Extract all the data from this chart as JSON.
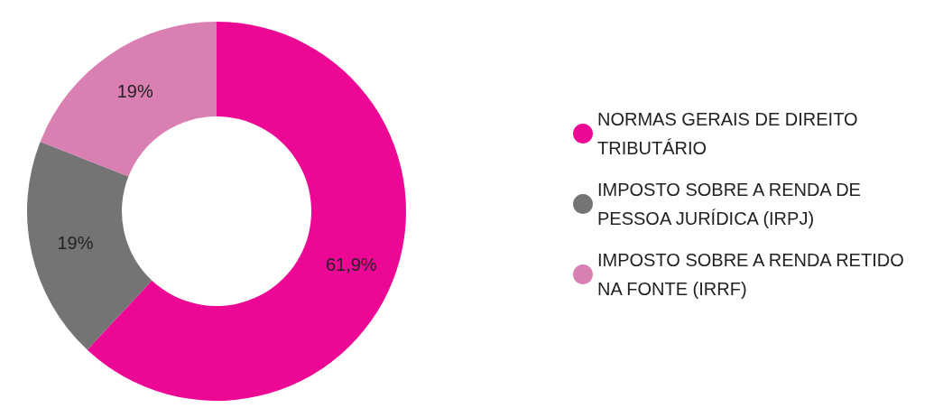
{
  "chart_data": {
    "type": "donut",
    "categories": [
      "NORMAS GERAIS DE DIREITO TRIBUTÁRIO",
      "IMPOSTO SOBRE A RENDA DE PESSOA JURÍDICA (IRPJ)",
      "IMPOSTO SOBRE A RENDA RETIDO NA FONTE (IRRF)"
    ],
    "values": [
      61.9,
      19,
      19
    ],
    "colors": [
      "#ec0894",
      "#747474",
      "#d97fb2"
    ],
    "value_labels": [
      "61,9%",
      "19%",
      "19%"
    ],
    "legend": "right"
  }
}
